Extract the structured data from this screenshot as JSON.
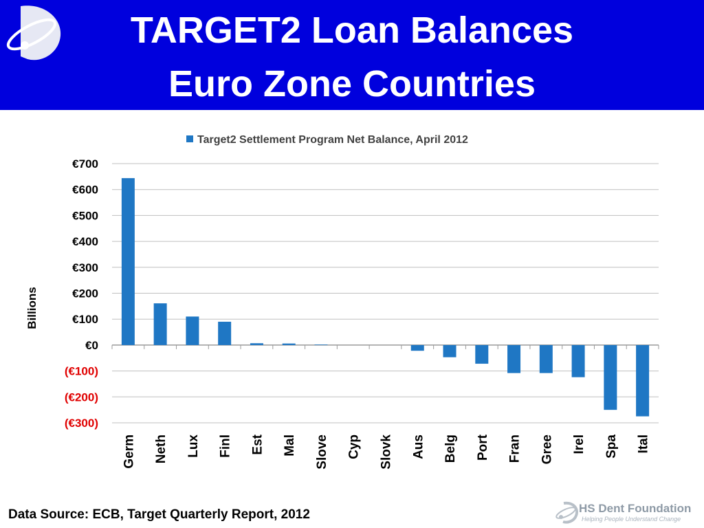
{
  "header": {
    "title_line1": "TARGET2 Loan Balances",
    "title_line2": "Euro Zone Countries",
    "background_color": "#0000dd"
  },
  "footer": {
    "source": "Data Source: ECB, Target Quarterly Report, 2012",
    "brand_name": "HS Dent Foundation",
    "brand_tagline": "Helping People Understand Change"
  },
  "chart_data": {
    "type": "bar",
    "title": "",
    "legend": [
      "Target2 Settlement Program Net Balance, April 2012"
    ],
    "legend_position": "top",
    "xlabel": "",
    "ylabel": "Billions",
    "ylim": [
      -300,
      700
    ],
    "grid": true,
    "bar_color": "#1f77c4",
    "negative_tick_color": "#e00000",
    "yticks": [
      {
        "value": 700,
        "label": "€700"
      },
      {
        "value": 600,
        "label": "€600"
      },
      {
        "value": 500,
        "label": "€500"
      },
      {
        "value": 400,
        "label": "€400"
      },
      {
        "value": 300,
        "label": "€300"
      },
      {
        "value": 200,
        "label": "€200"
      },
      {
        "value": 100,
        "label": "€100"
      },
      {
        "value": 0,
        "label": "€0"
      },
      {
        "value": -100,
        "label": "(€100)"
      },
      {
        "value": -200,
        "label": "(€200)"
      },
      {
        "value": -300,
        "label": "(€300)"
      }
    ],
    "categories": [
      "Germ",
      "Neth",
      "Lux",
      "Finl",
      "Est",
      "Mal",
      "Slove",
      "Cyp",
      "Slovk",
      "Aus",
      "Belg",
      "Port",
      "Fran",
      "Gree",
      "Irel",
      "Spa",
      "Ital"
    ],
    "series": [
      {
        "name": "Target2 Settlement Program Net Balance, April 2012",
        "values": [
          644,
          161,
          110,
          90,
          7,
          6,
          2,
          0,
          0,
          -22,
          -47,
          -72,
          -108,
          -108,
          -124,
          -250,
          -275
        ]
      }
    ]
  }
}
